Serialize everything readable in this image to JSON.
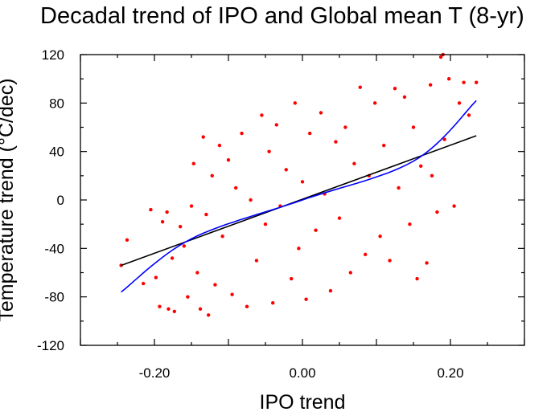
{
  "chart_data": {
    "type": "scatter",
    "title": "Decadal trend of IPO and Global mean T (8-yr)",
    "xlabel": "IPO trend",
    "ylabel": "Temperature trend (°C/dec)",
    "xlim": [
      -0.3,
      0.3
    ],
    "ylim": [
      -120,
      120
    ],
    "xticks": [
      -0.2,
      0.0,
      0.2
    ],
    "xtick_labels": [
      "-0.20",
      "0.00",
      "0.20"
    ],
    "yticks": [
      -120,
      -80,
      -40,
      0,
      40,
      80,
      120
    ],
    "ytick_labels": [
      "-120",
      "-80",
      "-40",
      "0",
      "40",
      "80",
      "120"
    ],
    "grid": false,
    "legend": "none",
    "colors": {
      "points": "#ff0000",
      "linear_fit": "#000000",
      "nonlinear_fit": "#0000ff"
    },
    "points_note": "approx. 1000 red points",
    "points": [
      [
        -0.245,
        -54
      ],
      [
        -0.237,
        -33
      ],
      [
        -0.215,
        -69
      ],
      [
        -0.205,
        -8
      ],
      [
        -0.198,
        -64
      ],
      [
        -0.193,
        -88
      ],
      [
        -0.189,
        -18
      ],
      [
        -0.183,
        -10
      ],
      [
        -0.181,
        -90
      ],
      [
        -0.176,
        -48
      ],
      [
        -0.173,
        -92
      ],
      [
        -0.165,
        -22
      ],
      [
        -0.16,
        -38
      ],
      [
        -0.155,
        -80
      ],
      [
        -0.15,
        -5
      ],
      [
        -0.147,
        30
      ],
      [
        -0.142,
        -60
      ],
      [
        -0.138,
        -90
      ],
      [
        -0.134,
        52
      ],
      [
        -0.13,
        -12
      ],
      [
        -0.127,
        -95
      ],
      [
        -0.122,
        20
      ],
      [
        -0.118,
        -70
      ],
      [
        -0.112,
        45
      ],
      [
        -0.108,
        -30
      ],
      [
        -0.1,
        33
      ],
      [
        -0.095,
        -78
      ],
      [
        -0.09,
        10
      ],
      [
        -0.082,
        55
      ],
      [
        -0.075,
        -88
      ],
      [
        -0.07,
        0
      ],
      [
        -0.062,
        -50
      ],
      [
        -0.055,
        70
      ],
      [
        -0.05,
        -20
      ],
      [
        -0.045,
        40
      ],
      [
        -0.04,
        -85
      ],
      [
        -0.035,
        62
      ],
      [
        -0.03,
        -5
      ],
      [
        -0.022,
        25
      ],
      [
        -0.015,
        -65
      ],
      [
        -0.01,
        80
      ],
      [
        -0.005,
        -40
      ],
      [
        0.0,
        15
      ],
      [
        0.005,
        -82
      ],
      [
        0.01,
        55
      ],
      [
        0.018,
        -25
      ],
      [
        0.025,
        72
      ],
      [
        0.03,
        5
      ],
      [
        0.038,
        -75
      ],
      [
        0.045,
        48
      ],
      [
        0.05,
        -15
      ],
      [
        0.058,
        60
      ],
      [
        0.065,
        -60
      ],
      [
        0.07,
        30
      ],
      [
        0.078,
        93
      ],
      [
        0.085,
        -45
      ],
      [
        0.09,
        20
      ],
      [
        0.098,
        80
      ],
      [
        0.105,
        -30
      ],
      [
        0.11,
        45
      ],
      [
        0.118,
        -50
      ],
      [
        0.125,
        92
      ],
      [
        0.13,
        10
      ],
      [
        0.138,
        85
      ],
      [
        0.145,
        -20
      ],
      [
        0.15,
        60
      ],
      [
        0.155,
        -65
      ],
      [
        0.16,
        28
      ],
      [
        0.168,
        -52
      ],
      [
        0.173,
        95
      ],
      [
        0.175,
        20
      ],
      [
        0.182,
        -10
      ],
      [
        0.187,
        118
      ],
      [
        0.19,
        120
      ],
      [
        0.192,
        50
      ],
      [
        0.198,
        100
      ],
      [
        0.205,
        -5
      ],
      [
        0.212,
        80
      ],
      [
        0.218,
        97
      ],
      [
        0.225,
        70
      ],
      [
        0.235,
        97
      ]
    ],
    "fits": [
      {
        "type": "linear",
        "x": [
          -0.245,
          0.235
        ],
        "y": [
          -54,
          53
        ]
      },
      {
        "type": "cubic",
        "x": [
          -0.245,
          -0.15,
          0.0,
          0.15,
          0.235
        ],
        "y": [
          -76,
          -32,
          0,
          32,
          82
        ]
      }
    ]
  }
}
